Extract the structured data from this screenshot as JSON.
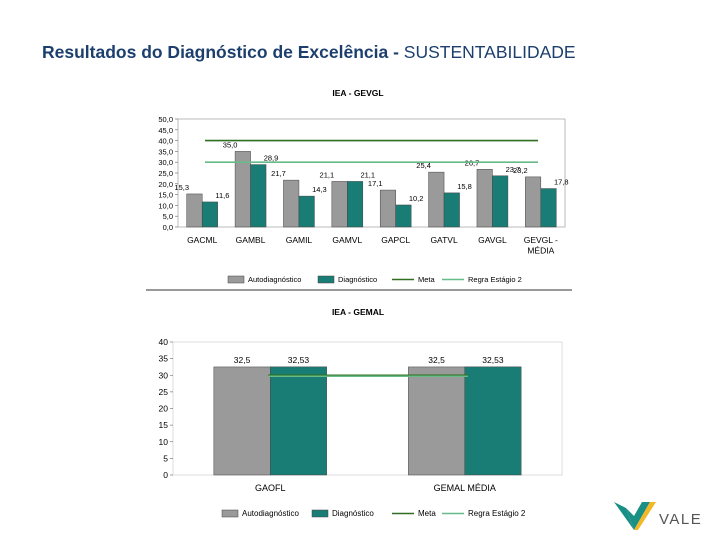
{
  "page": {
    "title_main": "Resultados do Diagnóstico de Excelência -",
    "title_sub": "SUSTENTABILIDADE"
  },
  "logo": {
    "text": "VALE",
    "colors": [
      "#1a8f85",
      "#f2b826"
    ]
  },
  "colors": {
    "autodiagnostico": "#9a9a9a",
    "diagnostico": "#1a7d75",
    "meta": "#2f6f1f",
    "regra": "#66bb88"
  },
  "chart_data": [
    {
      "type": "bar",
      "title": "IEA - GEVGL",
      "categories": [
        "GACML",
        "GAMBL",
        "GAMIL",
        "GAMVL",
        "GAPCL",
        "GATVL",
        "GAVGL",
        "GEVGL - MÉDIA"
      ],
      "series": [
        {
          "name": "Autodiagnóstico",
          "values": [
            15.3,
            35.0,
            21.7,
            21.1,
            17.1,
            25.4,
            26.7,
            23.2
          ]
        },
        {
          "name": "Diagnóstico",
          "values": [
            11.6,
            28.9,
            14.3,
            21.1,
            10.2,
            15.8,
            23.7,
            17.8
          ]
        }
      ],
      "value_labels": [
        [
          "15,3",
          "35,0",
          "21,7",
          "21,1",
          "17,1",
          "25,4",
          "26,7",
          "23,2"
        ],
        [
          "11,6",
          "28,9",
          "14,3",
          "21,1",
          "10,2",
          "15,8",
          "23,7",
          "17,8"
        ]
      ],
      "lines": [
        {
          "name": "Meta",
          "value": 40
        },
        {
          "name": "Regra Estágio 2",
          "value": 30
        }
      ],
      "ylim": [
        0,
        50
      ],
      "yticks": [
        "0,0",
        "5,0",
        "10,0",
        "15,0",
        "20,0",
        "25,0",
        "30,0",
        "35,0",
        "40,0",
        "45,0",
        "50,0"
      ],
      "legend": [
        "Autodiagnóstico",
        "Diagnóstico",
        "Meta",
        "Regra Estágio 2"
      ],
      "legend_position": "bottom"
    },
    {
      "type": "bar",
      "title": "IEA - GEMAL",
      "categories": [
        "GAOFL",
        "GEMAL MÉDIA"
      ],
      "series": [
        {
          "name": "Autodiagnóstico",
          "values": [
            32.5,
            32.5
          ]
        },
        {
          "name": "Diagnóstico",
          "values": [
            32.53,
            32.53
          ]
        }
      ],
      "value_labels": [
        [
          "32,5",
          "32,5"
        ],
        [
          "32,53",
          "32,53"
        ]
      ],
      "lines": [
        {
          "name": "Meta",
          "value": 30
        },
        {
          "name": "Regra Estágio 2",
          "value": 30
        }
      ],
      "ylim": [
        0,
        40
      ],
      "yticks": [
        "0",
        "5",
        "10",
        "15",
        "20",
        "25",
        "30",
        "35",
        "40"
      ],
      "legend": [
        "Autodiagnóstico",
        "Diagnóstico",
        "Meta",
        "Regra Estágio 2"
      ],
      "legend_position": "bottom"
    }
  ]
}
